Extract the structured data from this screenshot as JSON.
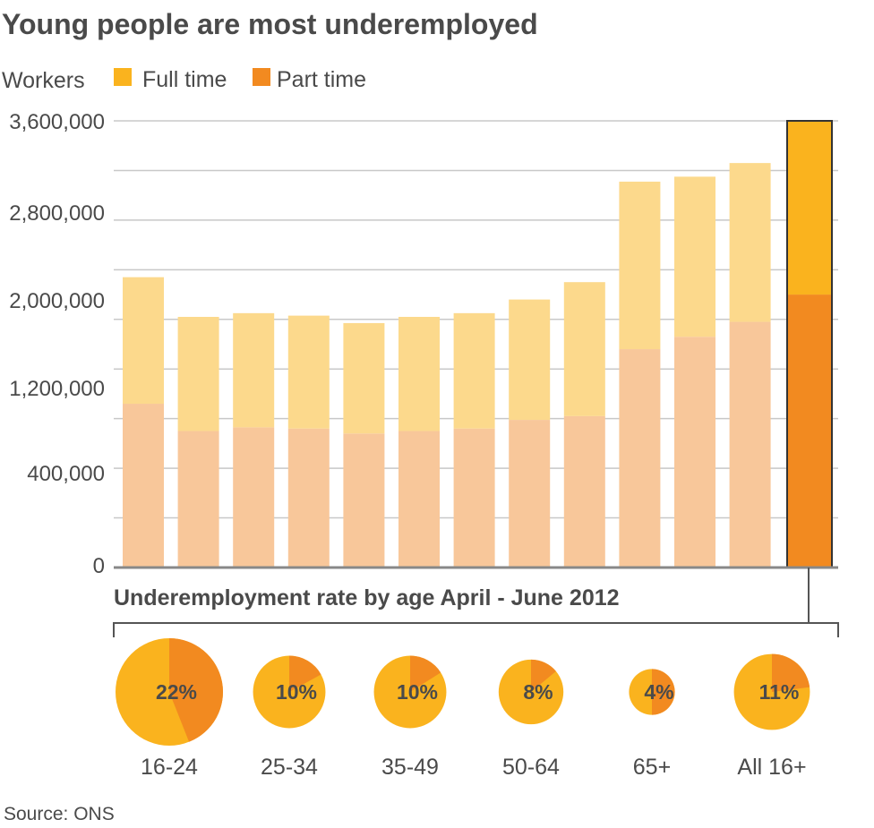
{
  "title": "Young people are most underemployed",
  "source": "Source: ONS",
  "colors": {
    "full_time": "#fab31e",
    "part_time": "#f28a20",
    "full_time_faded": "#fcd98c",
    "part_time_faded": "#f8c79a",
    "grid": "#c8c8c8",
    "axis": "#888888"
  },
  "chart_data": [
    {
      "type": "bar",
      "stacked": true,
      "title": "Young people are most underemployed",
      "ylabel": "Workers",
      "yticks": [
        "3,600,000",
        "2,800,000",
        "2,000,000",
        "1,200,000",
        "400,000",
        "0"
      ],
      "ylim": [
        0,
        3600000
      ],
      "gridlines": true,
      "legend": "top-left",
      "categories": [
        "",
        "",
        "",
        "",
        "",
        "",
        "",
        "",
        "",
        "",
        "",
        "",
        ""
      ],
      "series": [
        {
          "name": "Part time",
          "values": [
            1320000,
            1100000,
            1130000,
            1120000,
            1080000,
            1100000,
            1120000,
            1190000,
            1220000,
            1760000,
            1860000,
            1980000,
            2200000
          ]
        },
        {
          "name": "Full time",
          "values": [
            1020000,
            920000,
            920000,
            910000,
            890000,
            920000,
            930000,
            970000,
            1080000,
            1350000,
            1290000,
            1280000,
            1400000
          ]
        }
      ],
      "highlighted_index": 12
    },
    {
      "type": "pie",
      "title": "Underemployment rate by age April - June 2012",
      "categories": [
        "16-24",
        "25-34",
        "35-49",
        "50-64",
        "65+",
        "All 16+"
      ],
      "labels": [
        "22%",
        "10%",
        "10%",
        "8%",
        "4%",
        "11%"
      ],
      "part_time_share": [
        0.44,
        0.17,
        0.16,
        0.14,
        0.5,
        0.23
      ]
    }
  ]
}
